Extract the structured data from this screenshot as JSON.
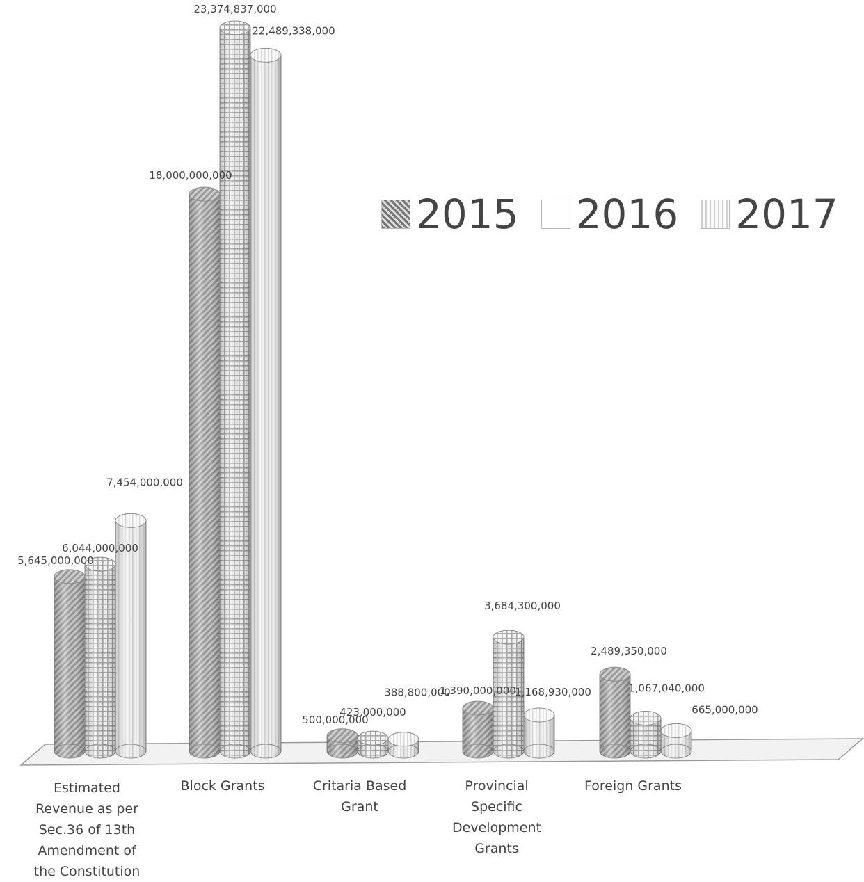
{
  "chart_data": {
    "type": "bar",
    "title": "",
    "xlabel": "",
    "ylabel": "",
    "categories": [
      "Estimated Revenue as per Sec.36 of 13th Amendment of the Constitution",
      "Block Grants",
      "Critaria Based Grant",
      "Provincial Specific Development Grants",
      "Foreign Grants"
    ],
    "category_lines": [
      [
        "Estimated",
        "Revenue as per",
        "Sec.36 of 13th",
        "Amendment of",
        "the Constitution"
      ],
      [
        "Block Grants"
      ],
      [
        "Critaria Based",
        "Grant"
      ],
      [
        "Provincial",
        "Specific",
        "Development",
        "Grants"
      ],
      [
        "Foreign Grants"
      ]
    ],
    "series": [
      {
        "name": "2015",
        "values": [
          5645000000,
          18000000000,
          500000000,
          1390000000,
          2489350000
        ],
        "labels": [
          "5,645,000,000",
          "18,000,000,000",
          "500,000,000",
          "1,390,000,000",
          "2,489,350,000"
        ]
      },
      {
        "name": "2016",
        "values": [
          6044000000,
          23374837000,
          423000000,
          3684300000,
          1067040000
        ],
        "labels": [
          "6,044,000,000",
          "23,374,837,000",
          "423,000,000",
          "3,684,300,000",
          "1,067,040,000"
        ]
      },
      {
        "name": "2017",
        "values": [
          7454000000,
          22489338000,
          388800000,
          1168930000,
          665000000
        ],
        "labels": [
          "7,454,000,000",
          "22,489,338,000",
          "388,800,000",
          "1,168,930,000",
          "665,000,000"
        ]
      }
    ],
    "ylim": [
      0,
      23374837000
    ],
    "grid": false,
    "legend": "top-right",
    "style": "3d-cylinder"
  },
  "legend": {
    "items": [
      "2015",
      "2016",
      "2017"
    ]
  }
}
